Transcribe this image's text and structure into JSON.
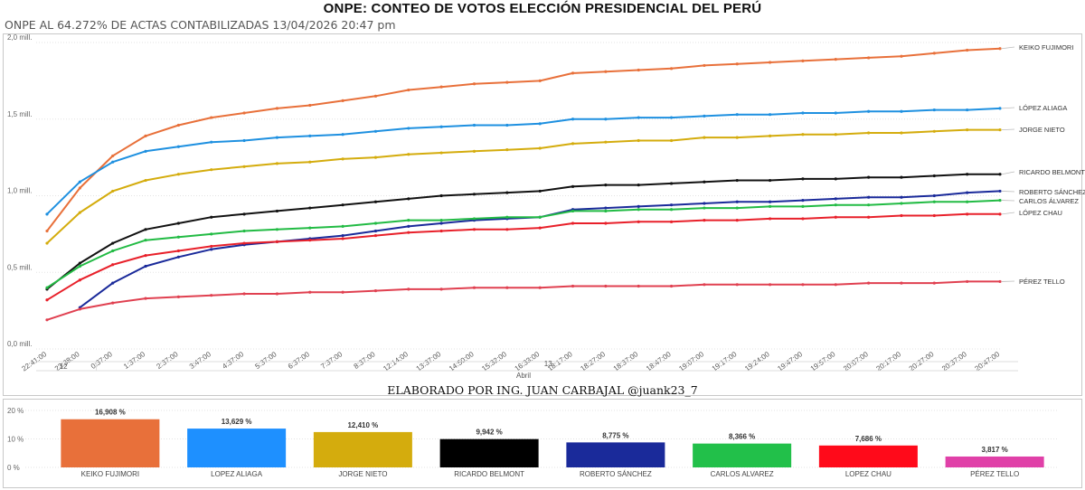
{
  "header": {
    "title": "ONPE: CONTEO DE VOTOS ELECCIÓN PRESIDENCIAL DEL PERÚ",
    "subtitle": "ONPE AL 64.272% DE ACTAS CONTABILIZADAS 13/04/2026 20:47 pm",
    "credit": "ELABORADO POR ING. JUAN CARBAJAL @juank23_7"
  },
  "chart_data": [
    {
      "type": "line",
      "title": "",
      "xlabel": "",
      "ylabel": "",
      "ylim": [
        0,
        2.0
      ],
      "y_ticks": [
        "0,0 mill.",
        "0,5 mill.",
        "1,0 mill.",
        "1,5 mill.",
        "2,0 mill."
      ],
      "x": [
        "22:41:00",
        "23:38:00",
        "0:37:00",
        "1:37:00",
        "2:37:00",
        "3:47:00",
        "4:37:00",
        "5:37:00",
        "6:37:00",
        "7:37:00",
        "8:37:00",
        "12:14:00",
        "13:37:00",
        "14:50:00",
        "15:32:00",
        "16:33:00",
        "18:17:00",
        "18:27:00",
        "18:37:00",
        "18:47:00",
        "19:07:00",
        "19:17:00",
        "19:24:00",
        "19:47:00",
        "19:57:00",
        "20:07:00",
        "20:17:00",
        "20:27:00",
        "20:37:00",
        "20:47:00"
      ],
      "day_labels": [
        "12",
        "13"
      ],
      "month_label": "Abril",
      "series": [
        {
          "name": "KEIKO FUJIMORI",
          "color": "#E8703A",
          "values": [
            0.77,
            1.05,
            1.26,
            1.39,
            1.46,
            1.51,
            1.54,
            1.57,
            1.59,
            1.62,
            1.65,
            1.69,
            1.71,
            1.73,
            1.74,
            1.75,
            1.8,
            1.81,
            1.82,
            1.83,
            1.85,
            1.86,
            1.87,
            1.88,
            1.89,
            1.9,
            1.91,
            1.93,
            1.95,
            1.96
          ]
        },
        {
          "name": "LÓPEZ ALIAGA",
          "color": "#1E90E0",
          "values": [
            0.88,
            1.09,
            1.22,
            1.29,
            1.32,
            1.35,
            1.36,
            1.38,
            1.39,
            1.4,
            1.42,
            1.44,
            1.45,
            1.46,
            1.46,
            1.47,
            1.5,
            1.5,
            1.51,
            1.51,
            1.52,
            1.53,
            1.53,
            1.54,
            1.54,
            1.55,
            1.55,
            1.56,
            1.56,
            1.57
          ]
        },
        {
          "name": "JORGE NIETO",
          "color": "#D4AC0D",
          "values": [
            0.69,
            0.89,
            1.03,
            1.1,
            1.14,
            1.17,
            1.19,
            1.21,
            1.22,
            1.24,
            1.25,
            1.27,
            1.28,
            1.29,
            1.3,
            1.31,
            1.34,
            1.35,
            1.36,
            1.36,
            1.38,
            1.38,
            1.39,
            1.4,
            1.4,
            1.41,
            1.41,
            1.42,
            1.43,
            1.43
          ]
        },
        {
          "name": "RICARDO BELMONT",
          "color": "#111111",
          "values": [
            0.39,
            0.56,
            0.69,
            0.78,
            0.82,
            0.86,
            0.88,
            0.9,
            0.92,
            0.94,
            0.96,
            0.98,
            1.0,
            1.01,
            1.02,
            1.03,
            1.06,
            1.07,
            1.07,
            1.08,
            1.09,
            1.1,
            1.1,
            1.11,
            1.11,
            1.12,
            1.12,
            1.13,
            1.14,
            1.14
          ]
        },
        {
          "name": "ROBERTO SÁNCHEZ",
          "color": "#1A2A9A",
          "values": [
            null,
            0.27,
            0.43,
            0.54,
            0.6,
            0.65,
            0.68,
            0.7,
            0.72,
            0.74,
            0.77,
            0.8,
            0.82,
            0.84,
            0.85,
            0.86,
            0.91,
            0.92,
            0.93,
            0.94,
            0.95,
            0.96,
            0.96,
            0.97,
            0.98,
            0.99,
            0.99,
            1.0,
            1.02,
            1.03
          ]
        },
        {
          "name": "CARLOS ÁLVAREZ",
          "color": "#22BB44",
          "values": [
            0.4,
            0.54,
            0.64,
            0.71,
            0.73,
            0.75,
            0.77,
            0.78,
            0.79,
            0.8,
            0.82,
            0.84,
            0.84,
            0.85,
            0.86,
            0.86,
            0.9,
            0.9,
            0.91,
            0.91,
            0.92,
            0.92,
            0.93,
            0.93,
            0.94,
            0.94,
            0.95,
            0.96,
            0.96,
            0.97
          ]
        },
        {
          "name": "LÓPEZ CHAU",
          "color": "#E8202A",
          "values": [
            0.32,
            0.45,
            0.55,
            0.61,
            0.64,
            0.67,
            0.69,
            0.7,
            0.71,
            0.72,
            0.74,
            0.76,
            0.77,
            0.78,
            0.78,
            0.79,
            0.82,
            0.82,
            0.83,
            0.83,
            0.84,
            0.84,
            0.85,
            0.85,
            0.86,
            0.86,
            0.87,
            0.87,
            0.88,
            0.88
          ]
        },
        {
          "name": "PÉREZ TELLO",
          "color": "#E04050",
          "values": [
            0.19,
            0.26,
            0.3,
            0.33,
            0.34,
            0.35,
            0.36,
            0.36,
            0.37,
            0.37,
            0.38,
            0.39,
            0.39,
            0.4,
            0.4,
            0.4,
            0.41,
            0.41,
            0.41,
            0.41,
            0.42,
            0.42,
            0.42,
            0.42,
            0.42,
            0.43,
            0.43,
            0.43,
            0.44,
            0.44
          ]
        }
      ]
    },
    {
      "type": "bar",
      "title": "",
      "ylim": [
        0,
        20
      ],
      "y_ticks": [
        "0 %",
        "10 %",
        "20 %"
      ],
      "categories": [
        "KEIKO FUJIMORI",
        "LOPEZ ALIAGA",
        "JORGE NIETO",
        "RICARDO BELMONT",
        "ROBERTO SÁNCHEZ",
        "CARLOS ALVAREZ",
        "LOPEZ CHAU",
        "PÉREZ TELLO"
      ],
      "values": [
        16.908,
        13.629,
        12.41,
        9.942,
        8.775,
        8.366,
        7.686,
        3.817
      ],
      "value_labels": [
        "16,908 %",
        "13,629 %",
        "12,410 %",
        "9,942 %",
        "8,775 %",
        "8,366 %",
        "7,686 %",
        "3,817 %"
      ],
      "colors": [
        "#E8703A",
        "#1E90FF",
        "#D4AC0D",
        "#000000",
        "#1A2A9A",
        "#22C04A",
        "#FF0A1A",
        "#E040A8"
      ]
    }
  ]
}
